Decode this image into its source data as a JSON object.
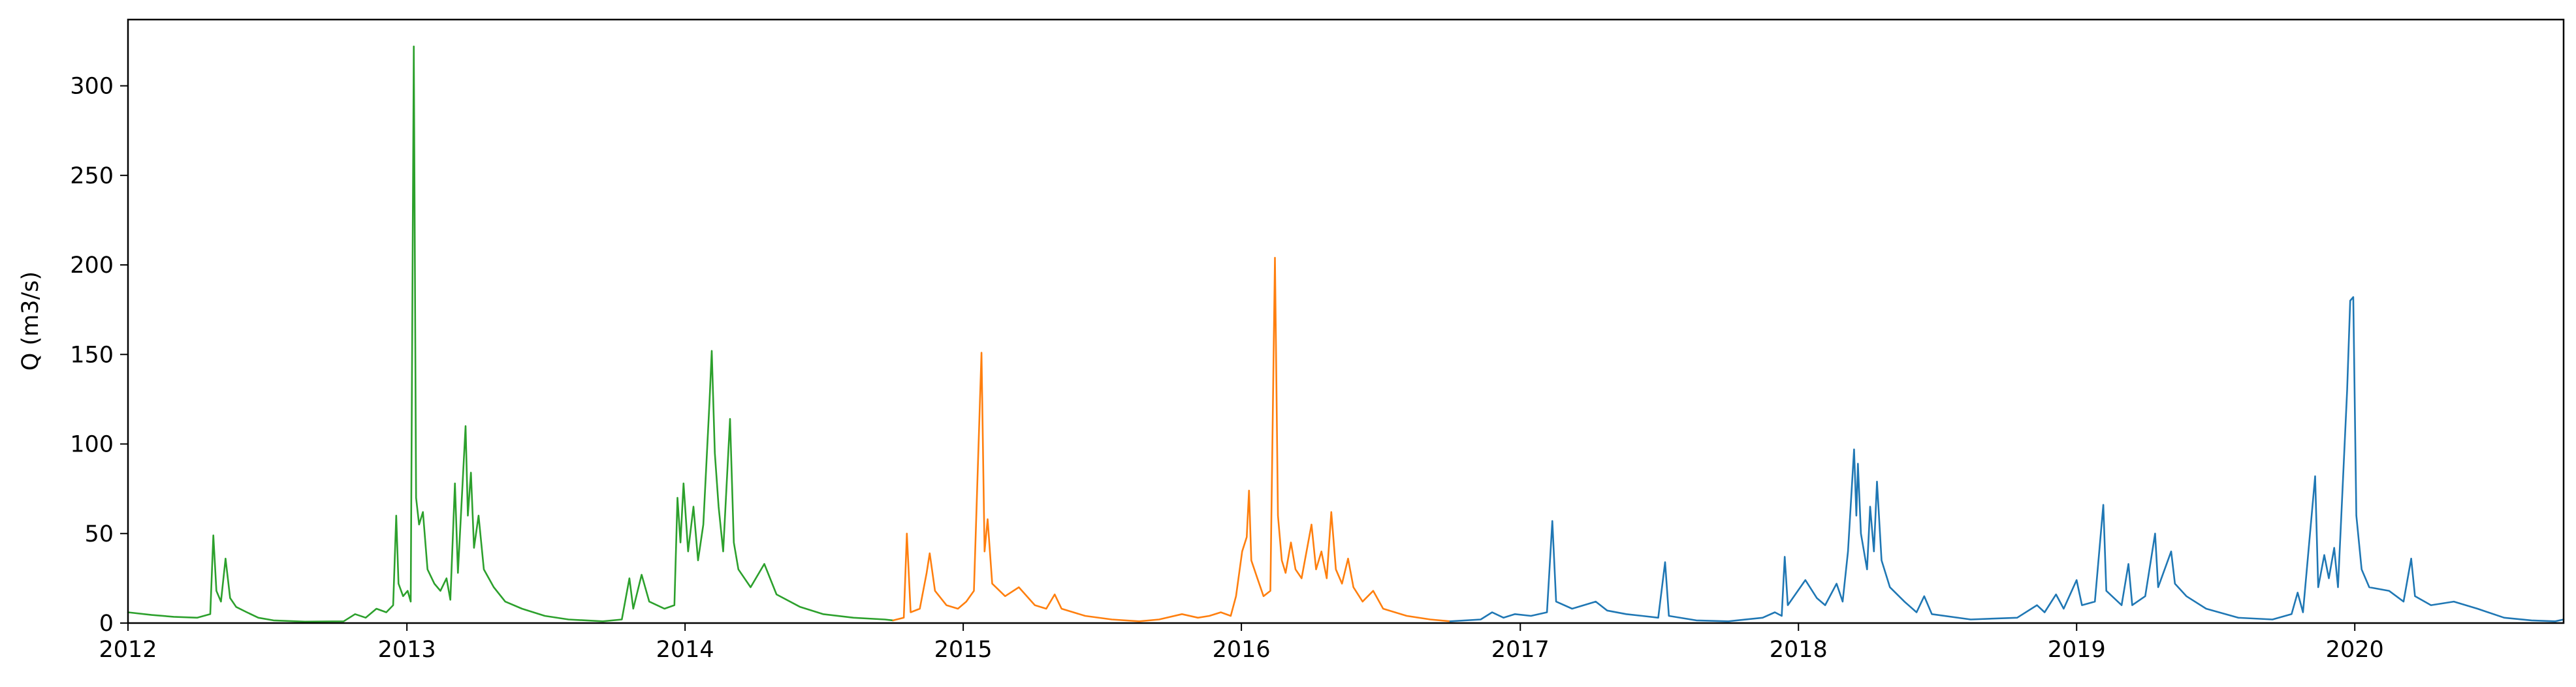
{
  "chart_data": {
    "type": "line",
    "title": "",
    "xlabel": "",
    "ylabel": "Q (m3/s)",
    "xlim": [
      "2012-01-01",
      "2020-10-01"
    ],
    "ylim": [
      0,
      337
    ],
    "x_ticks": [
      "2012",
      "2013",
      "2014",
      "2015",
      "2016",
      "2017",
      "2018",
      "2019",
      "2020"
    ],
    "y_ticks": [
      0,
      50,
      100,
      150,
      200,
      250,
      300
    ],
    "grid": false,
    "legend": "none",
    "series": [
      {
        "color": "#2ca02c",
        "points": [
          [
            "2012-01-01",
            6
          ],
          [
            "2012-02-01",
            4.5
          ],
          [
            "2012-03-01",
            3.5
          ],
          [
            "2012-04-01",
            3
          ],
          [
            "2012-04-18",
            5
          ],
          [
            "2012-04-22",
            49
          ],
          [
            "2012-04-26",
            18
          ],
          [
            "2012-05-02",
            12
          ],
          [
            "2012-05-08",
            36
          ],
          [
            "2012-05-14",
            14
          ],
          [
            "2012-05-22",
            9
          ],
          [
            "2012-06-05",
            6
          ],
          [
            "2012-06-20",
            3
          ],
          [
            "2012-07-10",
            1.5
          ],
          [
            "2012-08-20",
            0.8
          ],
          [
            "2012-10-10",
            1
          ],
          [
            "2012-10-25",
            5
          ],
          [
            "2012-11-08",
            3
          ],
          [
            "2012-11-22",
            8
          ],
          [
            "2012-12-05",
            6
          ],
          [
            "2012-12-14",
            10
          ],
          [
            "2012-12-18",
            60
          ],
          [
            "2012-12-21",
            22
          ],
          [
            "2012-12-27",
            15
          ],
          [
            "2013-01-02",
            18
          ],
          [
            "2013-01-06",
            12
          ],
          [
            "2013-01-10",
            322
          ],
          [
            "2013-01-13",
            70
          ],
          [
            "2013-01-17",
            55
          ],
          [
            "2013-01-22",
            62
          ],
          [
            "2013-01-28",
            30
          ],
          [
            "2013-02-06",
            22
          ],
          [
            "2013-02-14",
            18
          ],
          [
            "2013-02-22",
            25
          ],
          [
            "2013-02-27",
            13
          ],
          [
            "2013-03-05",
            78
          ],
          [
            "2013-03-09",
            28
          ],
          [
            "2013-03-19",
            110
          ],
          [
            "2013-03-22",
            60
          ],
          [
            "2013-03-26",
            84
          ],
          [
            "2013-03-30",
            42
          ],
          [
            "2013-04-05",
            60
          ],
          [
            "2013-04-12",
            30
          ],
          [
            "2013-04-25",
            20
          ],
          [
            "2013-05-10",
            12
          ],
          [
            "2013-06-01",
            8
          ],
          [
            "2013-07-01",
            4
          ],
          [
            "2013-08-01",
            2
          ],
          [
            "2013-09-15",
            1
          ],
          [
            "2013-10-10",
            2
          ],
          [
            "2013-10-20",
            25
          ],
          [
            "2013-10-25",
            8
          ],
          [
            "2013-11-05",
            27
          ],
          [
            "2013-11-15",
            12
          ],
          [
            "2013-12-05",
            8
          ],
          [
            "2013-12-18",
            10
          ],
          [
            "2013-12-22",
            70
          ],
          [
            "2013-12-26",
            45
          ],
          [
            "2013-12-30",
            78
          ],
          [
            "2014-01-05",
            40
          ],
          [
            "2014-01-12",
            65
          ],
          [
            "2014-01-18",
            35
          ],
          [
            "2014-01-25",
            55
          ],
          [
            "2014-02-02",
            123
          ],
          [
            "2014-02-05",
            152
          ],
          [
            "2014-02-09",
            95
          ],
          [
            "2014-02-14",
            65
          ],
          [
            "2014-02-20",
            40
          ],
          [
            "2014-03-01",
            114
          ],
          [
            "2014-03-06",
            45
          ],
          [
            "2014-03-12",
            30
          ],
          [
            "2014-03-28",
            20
          ],
          [
            "2014-04-15",
            33
          ],
          [
            "2014-05-01",
            16
          ],
          [
            "2014-06-01",
            9
          ],
          [
            "2014-07-01",
            5
          ],
          [
            "2014-08-10",
            3
          ],
          [
            "2014-09-20",
            2
          ],
          [
            "2014-10-01",
            1.5
          ]
        ]
      },
      {
        "color": "#ff7f0e",
        "points": [
          [
            "2014-10-01",
            1.5
          ],
          [
            "2014-10-15",
            3
          ],
          [
            "2014-10-19",
            50
          ],
          [
            "2014-10-24",
            6
          ],
          [
            "2014-11-05",
            8
          ],
          [
            "2014-11-14",
            28
          ],
          [
            "2014-11-18",
            39
          ],
          [
            "2014-11-25",
            18
          ],
          [
            "2014-12-10",
            10
          ],
          [
            "2014-12-25",
            8
          ],
          [
            "2015-01-05",
            12
          ],
          [
            "2015-01-15",
            18
          ],
          [
            "2015-01-25",
            151
          ],
          [
            "2015-01-29",
            40
          ],
          [
            "2015-02-02",
            58
          ],
          [
            "2015-02-08",
            22
          ],
          [
            "2015-02-25",
            15
          ],
          [
            "2015-03-15",
            20
          ],
          [
            "2015-04-05",
            10
          ],
          [
            "2015-04-20",
            8
          ],
          [
            "2015-05-01",
            16
          ],
          [
            "2015-05-10",
            8
          ],
          [
            "2015-06-10",
            4
          ],
          [
            "2015-07-15",
            2
          ],
          [
            "2015-08-20",
            1
          ],
          [
            "2015-09-15",
            2
          ],
          [
            "2015-10-15",
            5
          ],
          [
            "2015-11-05",
            3
          ],
          [
            "2015-11-20",
            4
          ],
          [
            "2015-12-05",
            6
          ],
          [
            "2015-12-18",
            4
          ],
          [
            "2015-12-25",
            15
          ],
          [
            "2016-01-02",
            40
          ],
          [
            "2016-01-08",
            48
          ],
          [
            "2016-01-11",
            74
          ],
          [
            "2016-01-14",
            35
          ],
          [
            "2016-01-22",
            25
          ],
          [
            "2016-01-30",
            15
          ],
          [
            "2016-02-08",
            18
          ],
          [
            "2016-02-14",
            204
          ],
          [
            "2016-02-18",
            60
          ],
          [
            "2016-02-23",
            35
          ],
          [
            "2016-02-28",
            28
          ],
          [
            "2016-03-06",
            45
          ],
          [
            "2016-03-12",
            30
          ],
          [
            "2016-03-20",
            25
          ],
          [
            "2016-04-02",
            55
          ],
          [
            "2016-04-08",
            30
          ],
          [
            "2016-04-15",
            40
          ],
          [
            "2016-04-22",
            25
          ],
          [
            "2016-04-28",
            62
          ],
          [
            "2016-05-04",
            30
          ],
          [
            "2016-05-12",
            22
          ],
          [
            "2016-05-20",
            36
          ],
          [
            "2016-05-27",
            20
          ],
          [
            "2016-06-08",
            12
          ],
          [
            "2016-06-22",
            18
          ],
          [
            "2016-07-05",
            8
          ],
          [
            "2016-08-05",
            4
          ],
          [
            "2016-09-05",
            2
          ],
          [
            "2016-10-01",
            1
          ]
        ]
      },
      {
        "color": "#1f77b4",
        "points": [
          [
            "2016-10-01",
            1
          ],
          [
            "2016-11-10",
            2
          ],
          [
            "2016-11-25",
            6
          ],
          [
            "2016-12-10",
            3
          ],
          [
            "2016-12-25",
            5
          ],
          [
            "2017-01-15",
            4
          ],
          [
            "2017-02-05",
            6
          ],
          [
            "2017-02-12",
            57
          ],
          [
            "2017-02-17",
            12
          ],
          [
            "2017-03-10",
            8
          ],
          [
            "2017-04-10",
            12
          ],
          [
            "2017-04-25",
            7
          ],
          [
            "2017-05-20",
            5
          ],
          [
            "2017-06-10",
            4
          ],
          [
            "2017-07-01",
            3
          ],
          [
            "2017-07-10",
            34
          ],
          [
            "2017-07-15",
            4
          ],
          [
            "2017-08-20",
            1.5
          ],
          [
            "2017-10-01",
            1
          ],
          [
            "2017-11-15",
            3
          ],
          [
            "2017-12-01",
            6
          ],
          [
            "2017-12-10",
            4
          ],
          [
            "2017-12-14",
            37
          ],
          [
            "2017-12-18",
            10
          ],
          [
            "2018-01-10",
            24
          ],
          [
            "2018-01-25",
            14
          ],
          [
            "2018-02-05",
            10
          ],
          [
            "2018-02-20",
            22
          ],
          [
            "2018-02-28",
            12
          ],
          [
            "2018-03-07",
            40
          ],
          [
            "2018-03-15",
            97
          ],
          [
            "2018-03-18",
            60
          ],
          [
            "2018-03-20",
            89
          ],
          [
            "2018-03-24",
            50
          ],
          [
            "2018-04-01",
            30
          ],
          [
            "2018-04-05",
            65
          ],
          [
            "2018-04-10",
            40
          ],
          [
            "2018-04-14",
            79
          ],
          [
            "2018-04-20",
            35
          ],
          [
            "2018-05-01",
            20
          ],
          [
            "2018-05-20",
            12
          ],
          [
            "2018-06-05",
            6
          ],
          [
            "2018-06-15",
            15
          ],
          [
            "2018-06-25",
            5
          ],
          [
            "2018-08-15",
            2
          ],
          [
            "2018-10-15",
            3
          ],
          [
            "2018-11-10",
            10
          ],
          [
            "2018-11-20",
            6
          ],
          [
            "2018-12-05",
            16
          ],
          [
            "2018-12-15",
            8
          ],
          [
            "2019-01-01",
            24
          ],
          [
            "2019-01-08",
            10
          ],
          [
            "2019-01-25",
            12
          ],
          [
            "2019-02-05",
            66
          ],
          [
            "2019-02-09",
            18
          ],
          [
            "2019-03-01",
            10
          ],
          [
            "2019-03-10",
            33
          ],
          [
            "2019-03-15",
            10
          ],
          [
            "2019-04-01",
            15
          ],
          [
            "2019-04-14",
            50
          ],
          [
            "2019-04-18",
            20
          ],
          [
            "2019-05-05",
            40
          ],
          [
            "2019-05-10",
            22
          ],
          [
            "2019-05-25",
            15
          ],
          [
            "2019-06-20",
            8
          ],
          [
            "2019-08-01",
            3
          ],
          [
            "2019-09-15",
            2
          ],
          [
            "2019-10-10",
            5
          ],
          [
            "2019-10-18",
            17
          ],
          [
            "2019-10-25",
            6
          ],
          [
            "2019-11-10",
            82
          ],
          [
            "2019-11-14",
            20
          ],
          [
            "2019-11-22",
            38
          ],
          [
            "2019-11-28",
            25
          ],
          [
            "2019-12-05",
            42
          ],
          [
            "2019-12-10",
            20
          ],
          [
            "2019-12-22",
            130
          ],
          [
            "2019-12-26",
            180
          ],
          [
            "2019-12-30",
            182
          ],
          [
            "2020-01-03",
            60
          ],
          [
            "2020-01-10",
            30
          ],
          [
            "2020-01-20",
            20
          ],
          [
            "2020-02-15",
            18
          ],
          [
            "2020-03-05",
            12
          ],
          [
            "2020-03-15",
            36
          ],
          [
            "2020-03-20",
            15
          ],
          [
            "2020-04-10",
            10
          ],
          [
            "2020-05-10",
            12
          ],
          [
            "2020-06-10",
            8
          ],
          [
            "2020-07-15",
            3
          ],
          [
            "2020-08-20",
            1.5
          ],
          [
            "2020-09-20",
            1
          ],
          [
            "2020-10-01",
            2
          ]
        ]
      }
    ]
  }
}
